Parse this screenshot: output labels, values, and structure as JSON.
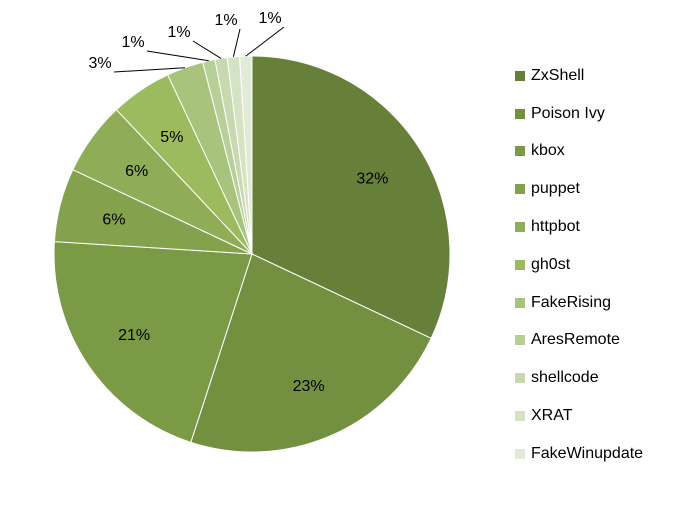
{
  "chart_data": {
    "type": "pie",
    "categories": [
      "ZxShell",
      "Poison Ivy",
      "kbox",
      "puppet",
      "httpbot",
      "gh0st",
      "FakeRising",
      "AresRemote",
      "shellcode",
      "XRAT",
      "FakeWinupdate"
    ],
    "values": [
      32,
      23,
      21,
      6,
      6,
      5,
      3,
      1,
      1,
      1,
      1
    ],
    "data_labels": [
      "32%",
      "23%",
      "21%",
      "6%",
      "6%",
      "5%",
      "3%",
      "1%",
      "1%",
      "1%",
      "1%"
    ],
    "colors": [
      "#66803a",
      "#738f40",
      "#7a9a45",
      "#84a24d",
      "#8fac56",
      "#9cba5e",
      "#a8c47c",
      "#b9cf98",
      "#c8d9b0",
      "#d5e2c4",
      "#e2ebd8"
    ],
    "legend_position": "right",
    "title": ""
  }
}
